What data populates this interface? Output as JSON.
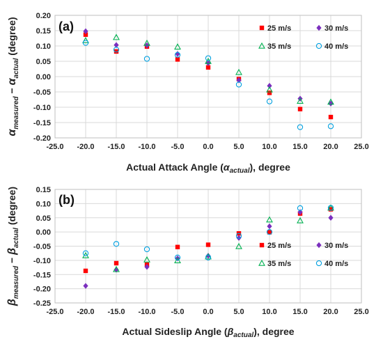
{
  "chart_data": [
    {
      "type": "scatter",
      "panel_label": "(a)",
      "xlabel": "Actual Attack Angle (",
      "xlabel_symbol": "α",
      "xlabel_sub": "actual",
      "xlabel_tail": "), degree",
      "ylabel_main": "α",
      "ylabel_main_sub": "measured",
      "ylabel_op": " − ",
      "ylabel_ref": "α",
      "ylabel_ref_sub": "actual",
      "ylabel_tail": " (degree)",
      "xlim": [
        -25,
        25
      ],
      "ylim": [
        -0.2,
        0.2
      ],
      "xticks": [
        "-25.0",
        "-20.0",
        "-15.0",
        "-10.0",
        "-5.0",
        "0.0",
        "5.0",
        "10.0",
        "15.0",
        "20.0",
        "25.0"
      ],
      "yticks": [
        "0.20",
        "0.15",
        "0.10",
        "0.05",
        "0.00",
        "-0.05",
        "-0.10",
        "-0.15",
        "-0.20"
      ],
      "grid": true,
      "legend_position": "upper-right",
      "series": [
        {
          "name": "25 m/s",
          "color": "#ff0000",
          "marker": "square",
          "x": [
            -20,
            -15,
            -10,
            -5,
            0,
            5,
            10,
            15,
            20
          ],
          "y": [
            0.137,
            0.082,
            0.098,
            0.056,
            0.03,
            -0.008,
            -0.053,
            -0.106,
            -0.132
          ]
        },
        {
          "name": "30 m/s",
          "color": "#7b2fbe",
          "marker": "diamond",
          "x": [
            -20,
            -15,
            -10,
            -5,
            0,
            5,
            10,
            15,
            20
          ],
          "y": [
            0.148,
            0.103,
            0.102,
            0.074,
            0.044,
            -0.012,
            -0.03,
            -0.072,
            -0.088
          ]
        },
        {
          "name": "35 m/s",
          "color": "#00b050",
          "marker": "triangle",
          "x": [
            -20,
            -15,
            -10,
            -5,
            0,
            5,
            10,
            15,
            20
          ],
          "y": [
            0.118,
            0.128,
            0.109,
            0.097,
            0.05,
            0.014,
            -0.043,
            -0.08,
            -0.083
          ]
        },
        {
          "name": "40 m/s",
          "color": "#00a0e0",
          "marker": "circle",
          "x": [
            -20,
            -15,
            -10,
            -5,
            0,
            5,
            10,
            15,
            20
          ],
          "y": [
            0.11,
            0.088,
            0.058,
            0.071,
            0.06,
            -0.026,
            -0.081,
            -0.165,
            -0.162
          ]
        }
      ]
    },
    {
      "type": "scatter",
      "panel_label": "(b)",
      "xlabel": "Actual Sideslip Angle (",
      "xlabel_symbol": "β",
      "xlabel_sub": "actual",
      "xlabel_tail": "), degree",
      "ylabel_main": "β",
      "ylabel_main_sub": "measured",
      "ylabel_op": " − ",
      "ylabel_ref": "β",
      "ylabel_ref_sub": "actual",
      "ylabel_tail": " (degree)",
      "xlim": [
        -25,
        25
      ],
      "ylim": [
        -0.25,
        0.15
      ],
      "xticks": [
        "-25.0",
        "-20.0",
        "-15.0",
        "-10.0",
        "-5.0",
        "0.0",
        "5.0",
        "10.0",
        "15.0",
        "20.0",
        "25.0"
      ],
      "yticks": [
        "0.15",
        "0.10",
        "0.05",
        "0.00",
        "-0.05",
        "-0.10",
        "-0.15",
        "-0.20",
        "-0.25"
      ],
      "grid": true,
      "legend_position": "lower-right",
      "series": [
        {
          "name": "25 m/s",
          "color": "#ff0000",
          "marker": "square",
          "x": [
            -20,
            -15,
            -10,
            -5,
            0,
            5,
            10,
            15,
            20
          ],
          "y": [
            -0.137,
            -0.11,
            -0.115,
            -0.053,
            -0.045,
            -0.005,
            -0.001,
            0.065,
            0.08
          ]
        },
        {
          "name": "30 m/s",
          "color": "#7b2fbe",
          "marker": "diamond",
          "x": [
            -20,
            -15,
            -10,
            -5,
            0,
            5,
            10,
            15,
            20
          ],
          "y": [
            -0.19,
            -0.133,
            -0.123,
            -0.093,
            -0.084,
            -0.021,
            0.02,
            0.07,
            0.05
          ]
        },
        {
          "name": "35 m/s",
          "color": "#00b050",
          "marker": "triangle",
          "x": [
            -20,
            -15,
            -10,
            -5,
            0,
            5,
            10,
            15,
            20
          ],
          "y": [
            -0.083,
            -0.132,
            -0.098,
            -0.101,
            -0.087,
            -0.051,
            0.043,
            0.04,
            0.085
          ]
        },
        {
          "name": "40 m/s",
          "color": "#00a0e0",
          "marker": "circle",
          "x": [
            -20,
            -15,
            -10,
            -5,
            0,
            5,
            10,
            15,
            20
          ],
          "y": [
            -0.075,
            -0.042,
            -0.061,
            -0.09,
            -0.09,
            -0.014,
            0.0,
            0.084,
            0.085
          ]
        }
      ]
    }
  ]
}
